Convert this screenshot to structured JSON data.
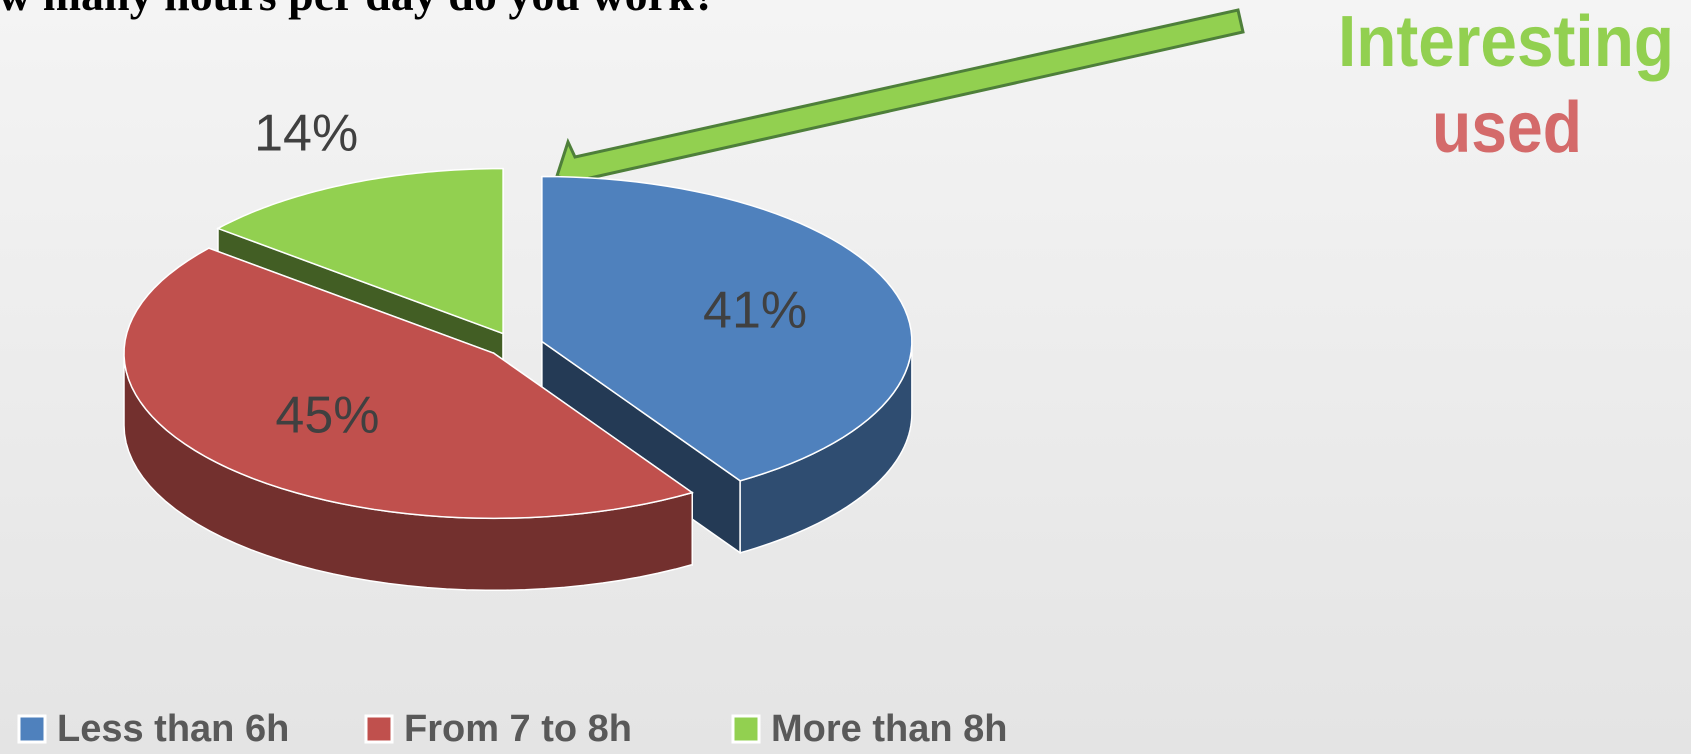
{
  "chart_data": {
    "type": "pie3d",
    "title": "w many hours per day do you work?",
    "annotations": [
      "Interesting",
      "used"
    ],
    "categories": [
      "Less than 6h",
      "From 7 to 8h",
      "More than 8h"
    ],
    "values": [
      41,
      45,
      14
    ],
    "value_labels": [
      "41%",
      "45%",
      "14%"
    ],
    "colors": [
      "#4f81bd",
      "#c0504d",
      "#92d050"
    ],
    "legend": "bottom"
  }
}
